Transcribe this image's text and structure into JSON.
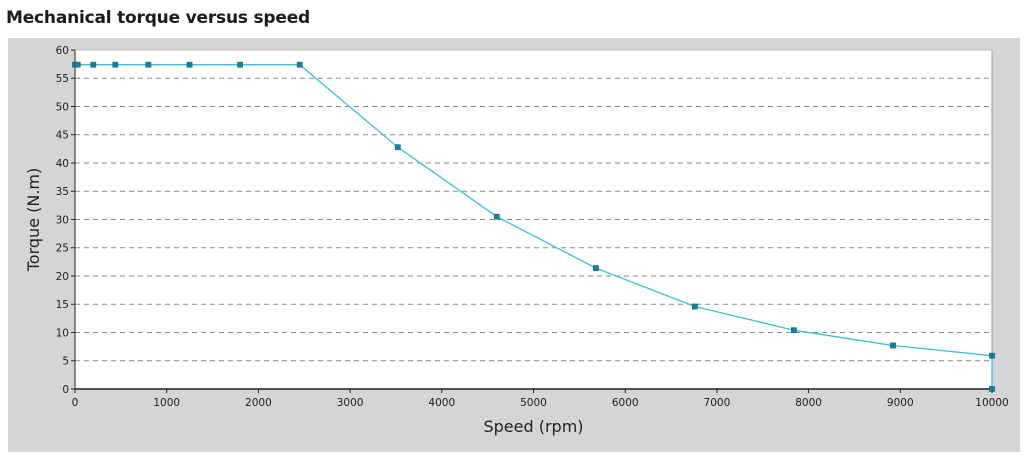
{
  "chart_title": "Mechanical torque versus speed",
  "colors": {
    "series_line": "#3cc0dc",
    "series_marker": "#17809a",
    "panel_background": "#d5d5d5",
    "plot_background": "#ffffff",
    "gridline": "#8a8a8a"
  },
  "chart_data": {
    "type": "line",
    "title": "Mechanical torque versus speed",
    "xlabel": "Speed (rpm)",
    "ylabel": "Torque (N.m)",
    "xlim": [
      0,
      10000
    ],
    "ylim": [
      0,
      60
    ],
    "x_ticks": [
      0,
      1000,
      2000,
      3000,
      4000,
      5000,
      6000,
      7000,
      8000,
      9000,
      10000
    ],
    "y_ticks": [
      0,
      5,
      10,
      15,
      20,
      25,
      30,
      35,
      40,
      45,
      50,
      55,
      60
    ],
    "grid": "horizontal dashed",
    "legend": "none",
    "series": [
      {
        "x": [
          0,
          30,
          200,
          440,
          800,
          1250,
          1800,
          2450,
          3520,
          4600,
          5680,
          6760,
          7840,
          8920,
          10000,
          10000
        ],
        "y": [
          57.4,
          57.4,
          57.4,
          57.4,
          57.4,
          57.4,
          57.4,
          57.4,
          42.8,
          30.5,
          21.4,
          14.6,
          10.4,
          7.7,
          5.9,
          0
        ],
        "markers": true
      }
    ]
  }
}
